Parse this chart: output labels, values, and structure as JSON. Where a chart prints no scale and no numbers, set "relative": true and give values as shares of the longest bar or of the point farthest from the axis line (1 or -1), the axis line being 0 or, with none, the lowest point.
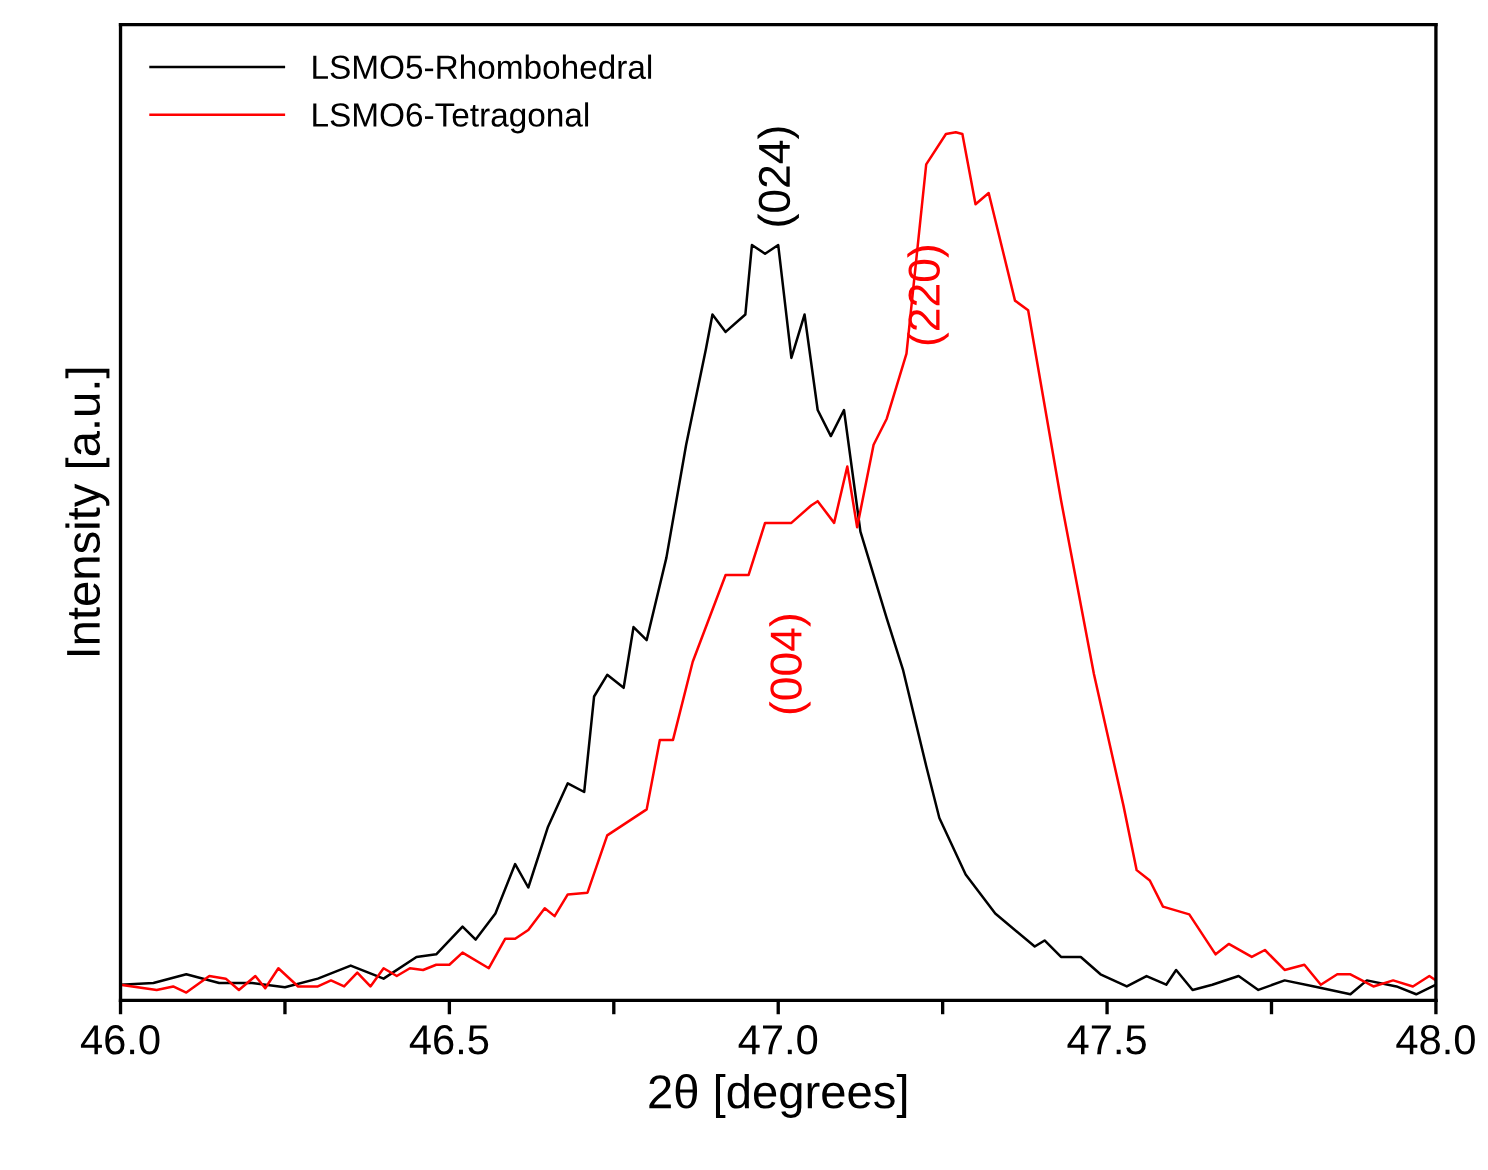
{
  "chart_data": {
    "type": "line",
    "relative": true,
    "xlabel": "2θ [degrees]",
    "ylabel": "Intensity [a.u.]",
    "xlim": [
      46.0,
      48.0
    ],
    "xticks": [
      {
        "value": 46.0,
        "label": "46.0"
      },
      {
        "value": 46.25,
        "label": null
      },
      {
        "value": 46.5,
        "label": "46.5"
      },
      {
        "value": 46.75,
        "label": null
      },
      {
        "value": 47.0,
        "label": "47.0"
      },
      {
        "value": 47.25,
        "label": null
      },
      {
        "value": 47.5,
        "label": "47.5"
      },
      {
        "value": 47.75,
        "label": null
      },
      {
        "value": 48.0,
        "label": "48.0"
      }
    ],
    "legend": "top left",
    "grid": false,
    "tick_labels": "x",
    "series": [
      {
        "name": "LSMO5-Rhombohedral",
        "color": "#000000",
        "x": [
          46.0,
          46.05,
          46.1,
          46.15,
          46.2,
          46.25,
          46.3,
          46.35,
          46.4,
          46.45,
          46.48,
          46.52,
          46.54,
          46.57,
          46.6,
          46.62,
          46.65,
          46.68,
          46.705,
          46.72,
          46.74,
          46.765,
          46.78,
          46.8,
          46.83,
          46.86,
          46.89,
          46.9,
          46.92,
          46.95,
          46.96,
          46.98,
          47.0,
          47.02,
          47.04,
          47.06,
          47.08,
          47.1,
          47.125,
          47.165,
          47.19,
          47.225,
          47.245,
          47.285,
          47.33,
          47.39,
          47.405,
          47.43,
          47.46,
          47.49,
          47.53,
          47.56,
          47.59,
          47.605,
          47.63,
          47.66,
          47.7,
          47.73,
          47.77,
          47.815,
          47.87,
          47.895,
          47.94,
          47.97,
          48.0
        ],
        "values": [
          0.018,
          0.02,
          0.03,
          0.02,
          0.02,
          0.015,
          0.025,
          0.04,
          0.025,
          0.05,
          0.053,
          0.085,
          0.07,
          0.1,
          0.157,
          0.13,
          0.2,
          0.25,
          0.24,
          0.35,
          0.375,
          0.36,
          0.43,
          0.415,
          0.51,
          0.64,
          0.75,
          0.79,
          0.77,
          0.79,
          0.87,
          0.86,
          0.87,
          0.74,
          0.79,
          0.68,
          0.65,
          0.68,
          0.54,
          0.44,
          0.38,
          0.27,
          0.21,
          0.145,
          0.1,
          0.062,
          0.069,
          0.05,
          0.05,
          0.03,
          0.016,
          0.028,
          0.018,
          0.035,
          0.012,
          0.018,
          0.028,
          0.012,
          0.023,
          0.016,
          0.007,
          0.023,
          0.016,
          0.007,
          0.018
        ]
      },
      {
        "name": "LSMO6-Tetragonal",
        "color": "#ff0000",
        "x": [
          46.0,
          46.055,
          46.08,
          46.1,
          46.135,
          46.16,
          46.18,
          46.205,
          46.22,
          46.24,
          46.27,
          46.3,
          46.32,
          46.34,
          46.36,
          46.38,
          46.4,
          46.42,
          46.44,
          46.46,
          46.48,
          46.5,
          46.52,
          46.56,
          46.585,
          46.6,
          46.62,
          46.645,
          46.66,
          46.68,
          46.71,
          46.74,
          46.8,
          46.82,
          46.84,
          46.87,
          46.92,
          46.955,
          46.98,
          47.02,
          47.05,
          47.06,
          47.085,
          47.105,
          47.12,
          47.145,
          47.165,
          47.195,
          47.225,
          47.255,
          47.27,
          47.28,
          47.3,
          47.32,
          47.36,
          47.38,
          47.43,
          47.48,
          47.525,
          47.545,
          47.565,
          47.585,
          47.625,
          47.665,
          47.685,
          47.72,
          47.74,
          47.77,
          47.8,
          47.825,
          47.85,
          47.87,
          47.905,
          47.935,
          47.965,
          47.99,
          48.0
        ],
        "values": [
          0.018,
          0.012,
          0.016,
          0.009,
          0.028,
          0.025,
          0.012,
          0.028,
          0.014,
          0.037,
          0.016,
          0.016,
          0.023,
          0.016,
          0.032,
          0.016,
          0.037,
          0.028,
          0.037,
          0.035,
          0.041,
          0.041,
          0.055,
          0.037,
          0.071,
          0.071,
          0.081,
          0.106,
          0.097,
          0.122,
          0.124,
          0.19,
          0.22,
          0.3,
          0.3,
          0.39,
          0.49,
          0.49,
          0.55,
          0.55,
          0.57,
          0.575,
          0.55,
          0.615,
          0.545,
          0.64,
          0.67,
          0.745,
          0.963,
          0.998,
          1.0,
          0.998,
          0.917,
          0.93,
          0.806,
          0.795,
          0.576,
          0.376,
          0.224,
          0.15,
          0.138,
          0.108,
          0.099,
          0.053,
          0.065,
          0.05,
          0.058,
          0.035,
          0.041,
          0.018,
          0.03,
          0.03,
          0.016,
          0.023,
          0.016,
          0.028,
          0.023
        ]
      }
    ],
    "annotations": [
      {
        "text": "(024)",
        "x": 47.0,
        "y": 0.87
      },
      {
        "text": "(220)",
        "x": 47.27,
        "y": 1.0
      },
      {
        "text": "(004)",
        "x": 47.06,
        "y": 0.575
      }
    ]
  }
}
